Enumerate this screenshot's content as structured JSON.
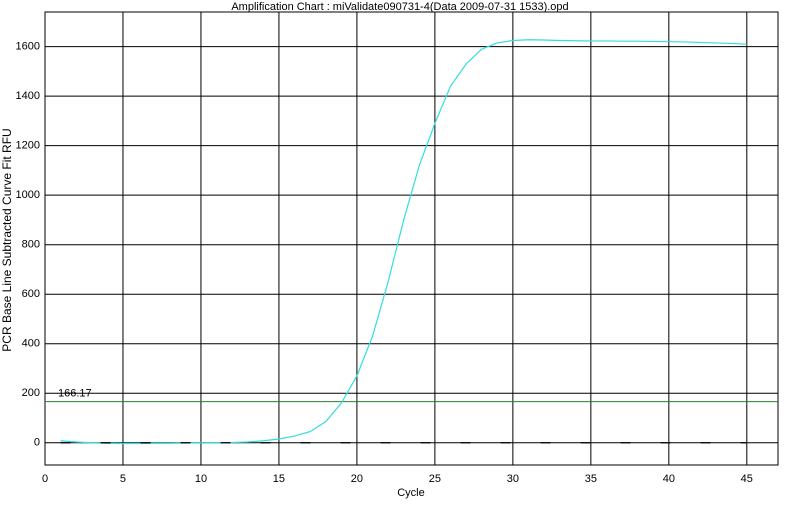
{
  "chart_data": {
    "type": "line",
    "title": "Amplification Chart : miValidate090731-4(Data 2009-07-31 1533).opd",
    "x_label": "Cycle",
    "y_label": "PCR Base Line Subtracted Curve Fit RFU",
    "x": [
      1,
      2,
      3,
      4,
      5,
      6,
      7,
      8,
      9,
      10,
      11,
      12,
      13,
      14,
      15,
      16,
      17,
      18,
      19,
      20,
      21,
      22,
      23,
      24,
      25,
      26,
      27,
      28,
      29,
      30,
      31,
      32,
      33,
      34,
      35,
      36,
      37,
      38,
      39,
      40,
      41,
      42,
      43,
      44,
      45
    ],
    "series": [
      {
        "color": "#33dddd",
        "values": [
          8,
          3,
          0,
          -2,
          -3,
          -3,
          -2,
          -2,
          -1,
          0,
          0,
          1,
          3,
          8,
          15,
          27,
          45,
          85,
          160,
          270,
          430,
          650,
          900,
          1120,
          1290,
          1440,
          1530,
          1590,
          1615,
          1625,
          1628,
          1627,
          1625,
          1624,
          1623,
          1623,
          1622,
          1622,
          1621,
          1620,
          1619,
          1617,
          1615,
          1613,
          1610
        ]
      },
      {
        "color": "#000000",
        "dash": true,
        "values": [
          0,
          0,
          0,
          0,
          0,
          0,
          0,
          0,
          0,
          0,
          0,
          0,
          0,
          0,
          0,
          0,
          0,
          0,
          0,
          0,
          0,
          0,
          0,
          0,
          0,
          0,
          0,
          0,
          0,
          0,
          0,
          0,
          0,
          0,
          0,
          0,
          0,
          0,
          0,
          0,
          0,
          0,
          0,
          0,
          0
        ]
      }
    ],
    "threshold": {
      "value": 166.17,
      "color": "#2e7d32"
    },
    "xlim": [
      0,
      47
    ],
    "xticks": [
      0,
      5,
      10,
      15,
      20,
      25,
      30,
      35,
      40,
      45
    ],
    "ylim": [
      -90,
      1740
    ],
    "yticks": [
      0,
      200,
      400,
      600,
      800,
      1000,
      1200,
      1400,
      1600
    ],
    "grid": true
  }
}
